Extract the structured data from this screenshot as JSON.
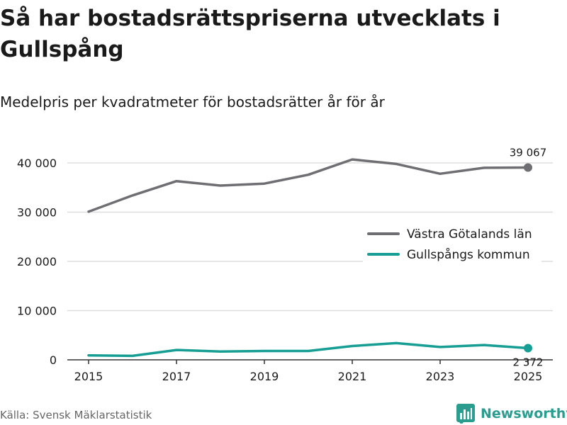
{
  "title": "Så har bostadsrättspriserna utvecklats i Gullspång",
  "subtitle": "Medelpris per kvadratmeter för bostadsrätter år för år",
  "source": "Källa: Svensk Mäklarstatistik",
  "brand": "Newsworthy",
  "colors": {
    "series1": "#6e6e73",
    "series2": "#169e94",
    "grid": "#dddddd",
    "axis": "#333333",
    "brand": "#2a9d8f"
  },
  "chart_data": {
    "type": "line",
    "x": [
      2015,
      2016,
      2017,
      2018,
      2019,
      2020,
      2021,
      2022,
      2023,
      2024,
      2025
    ],
    "x_tick_labels": [
      "2015",
      "2017",
      "2019",
      "2021",
      "2023",
      "2025"
    ],
    "x_ticks": [
      2015,
      2017,
      2019,
      2021,
      2023,
      2025
    ],
    "y_ticks": [
      0,
      10000,
      20000,
      30000,
      40000
    ],
    "y_tick_labels": [
      "0",
      "10 000",
      "20 000",
      "30 000",
      "40 000"
    ],
    "ylim": [
      0,
      43000
    ],
    "xlim": [
      2014.6,
      2025.4
    ],
    "grid": true,
    "legend_position": "right",
    "series": [
      {
        "name": "Västra Götalands län",
        "values": [
          30100,
          33400,
          36300,
          35400,
          35800,
          37600,
          40700,
          39800,
          37800,
          39000,
          39067
        ],
        "end_label": "39 067"
      },
      {
        "name": "Gullspångs kommun",
        "values": [
          900,
          800,
          2000,
          1700,
          1800,
          1800,
          2800,
          3400,
          2600,
          3000,
          2372
        ],
        "end_label": "2 372"
      }
    ]
  }
}
